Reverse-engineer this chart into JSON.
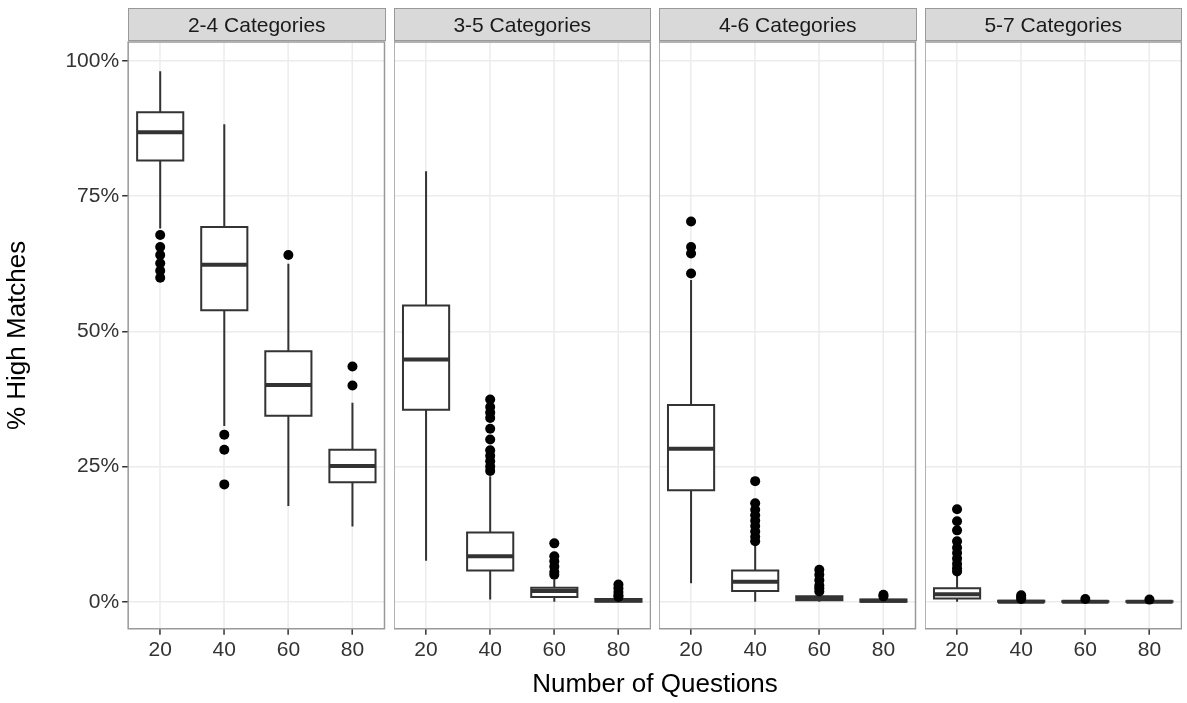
{
  "chart_data": [
    {
      "type": "box",
      "title": "2-4 Categories",
      "ylabel": "% High Matches",
      "xlabel": "Number of Questions",
      "categories": [
        "20",
        "40",
        "60",
        "80"
      ],
      "ylim": [
        -5,
        103.5
      ],
      "yticks": [
        {
          "value": 0,
          "label": "0%"
        },
        {
          "value": 25,
          "label": "25%"
        },
        {
          "value": 50,
          "label": "50%"
        },
        {
          "value": 75,
          "label": "75%"
        },
        {
          "value": 100,
          "label": "100%"
        }
      ],
      "grid": true,
      "boxes": [
        {
          "low": 69,
          "q1": 81.6,
          "median": 86.8,
          "q3": 90.5,
          "high": 98.1,
          "outliers": [
            67.8,
            65.6,
            64.1,
            62.6,
            61.2,
            59.9
          ]
        },
        {
          "low": 32.5,
          "q1": 53.9,
          "median": 62.3,
          "q3": 69.3,
          "high": 88.3,
          "outliers": [
            30.9,
            28.1,
            21.7
          ]
        },
        {
          "low": 17.7,
          "q1": 34.4,
          "median": 40.1,
          "q3": 46.3,
          "high": 62.5,
          "outliers": [
            64.1
          ]
        },
        {
          "low": 13.9,
          "q1": 22.1,
          "median": 25.1,
          "q3": 28.1,
          "high": 36.8,
          "outliers": [
            43.5,
            40
          ]
        }
      ]
    },
    {
      "type": "box",
      "title": "3-5 Categories",
      "tick_labels": "x",
      "categories": [
        "20",
        "40",
        "60",
        "80"
      ],
      "ylim": [
        -5,
        103.5
      ],
      "yticks": [
        0,
        25,
        50,
        75,
        100
      ],
      "grid": true,
      "boxes": [
        {
          "low": 7.6,
          "q1": 35.5,
          "median": 44.8,
          "q3": 54.8,
          "high": 79.6
        },
        {
          "low": 0.4,
          "q1": 5.8,
          "median": 8.4,
          "q3": 12.8,
          "high": 23.2,
          "outliers": [
            37.4,
            36,
            35,
            34,
            32,
            30,
            28,
            27,
            26,
            25,
            24.2
          ]
        },
        {
          "low": 0,
          "q1": 0.9,
          "median": 2,
          "q3": 2.6,
          "high": 4.1,
          "outliers": [
            10.8,
            8.4,
            7.5,
            6.5,
            5.5,
            5
          ]
        },
        {
          "low": 0,
          "q1": 0,
          "median": 0.3,
          "q3": 0.5,
          "high": 0.8,
          "outliers": [
            3.2,
            2.5,
            1.8,
            1.2,
            0.9
          ]
        }
      ]
    },
    {
      "type": "box",
      "title": "4-6 Categories",
      "tick_labels": "x",
      "categories": [
        "20",
        "40",
        "60",
        "80"
      ],
      "ylim": [
        -5,
        103.5
      ],
      "yticks": [
        0,
        25,
        50,
        75,
        100
      ],
      "grid": true,
      "boxes": [
        {
          "low": 3.4,
          "q1": 20.6,
          "median": 28.3,
          "q3": 36.4,
          "high": 59.5,
          "outliers": [
            70.3,
            65.6,
            64.4,
            60.7
          ]
        },
        {
          "low": 0,
          "q1": 2,
          "median": 3.7,
          "q3": 5.8,
          "high": 10.6,
          "outliers": [
            22.3,
            18.2,
            17,
            16,
            15,
            14,
            13,
            12,
            11.2
          ]
        },
        {
          "low": 0,
          "q1": 0.3,
          "median": 0.7,
          "q3": 1,
          "high": 1.5,
          "outliers": [
            5.9,
            5,
            4,
            3,
            2.5,
            1.9
          ]
        },
        {
          "low": 0,
          "q1": 0,
          "median": 0.2,
          "q3": 0.4,
          "high": 0.7,
          "outliers": [
            1.3,
            1
          ]
        }
      ]
    },
    {
      "type": "box",
      "title": "5-7 Categories",
      "tick_labels": "x",
      "categories": [
        "20",
        "40",
        "60",
        "80"
      ],
      "ylim": [
        -5,
        103.5
      ],
      "yticks": [
        0,
        25,
        50,
        75,
        100
      ],
      "grid": true,
      "boxes": [
        {
          "low": 0,
          "q1": 0.6,
          "median": 1.4,
          "q3": 2.5,
          "high": 5.2,
          "outliers": [
            17.1,
            14.9,
            13.2,
            11.2,
            10,
            9,
            8,
            7,
            6.2,
            5.6
          ]
        },
        {
          "low": 0,
          "q1": 0,
          "median": 0,
          "q3": 0.2,
          "high": 0.4,
          "outliers": [
            1.2,
            0.8,
            0.5
          ]
        },
        {
          "low": 0,
          "q1": 0,
          "median": 0,
          "q3": 0.1,
          "high": 0.2,
          "outliers": [
            0.5
          ]
        },
        {
          "low": 0,
          "q1": 0,
          "median": 0,
          "q3": 0.1,
          "high": 0.2,
          "outliers": [
            0.4
          ]
        }
      ]
    }
  ]
}
